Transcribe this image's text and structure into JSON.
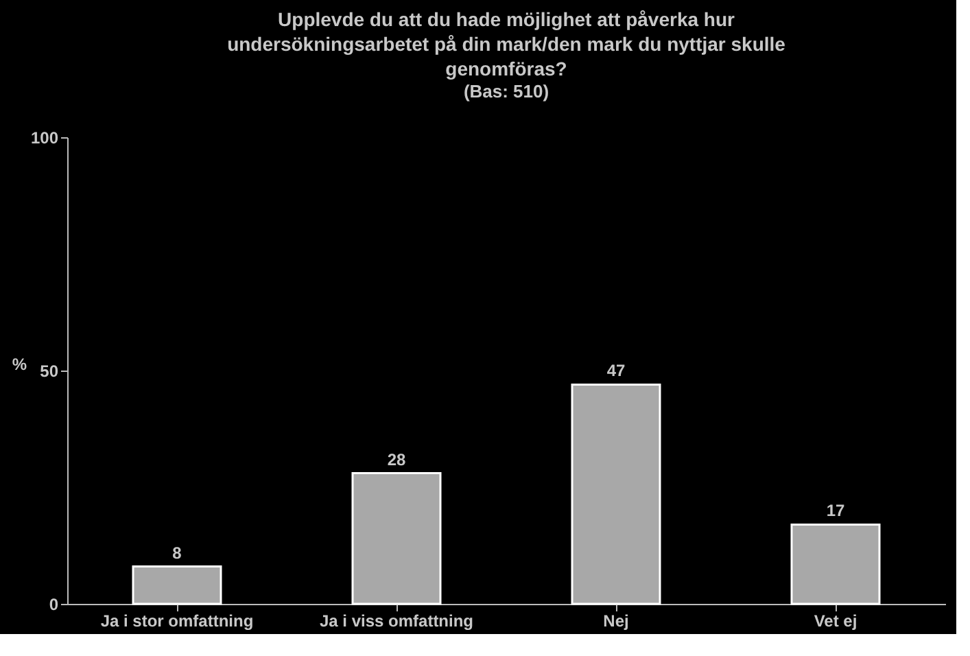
{
  "chart_data": {
    "type": "bar",
    "title": "Upplevde du att du hade möjlighet att påverka hur undersökningsarbetet på din mark/den mark du nyttjar skulle genomföras?",
    "subtitle": "(Bas: 510)",
    "ylabel": "%",
    "categories": [
      "Ja i stor omfattning",
      "Ja i viss omfattning",
      "Nej",
      "Vet ej"
    ],
    "values": [
      8,
      28,
      47,
      17
    ],
    "color": "#a8a8a8",
    "ylim": [
      0,
      100
    ],
    "yticks": [
      0,
      50,
      100
    ],
    "grid": false,
    "data_labels": true
  }
}
